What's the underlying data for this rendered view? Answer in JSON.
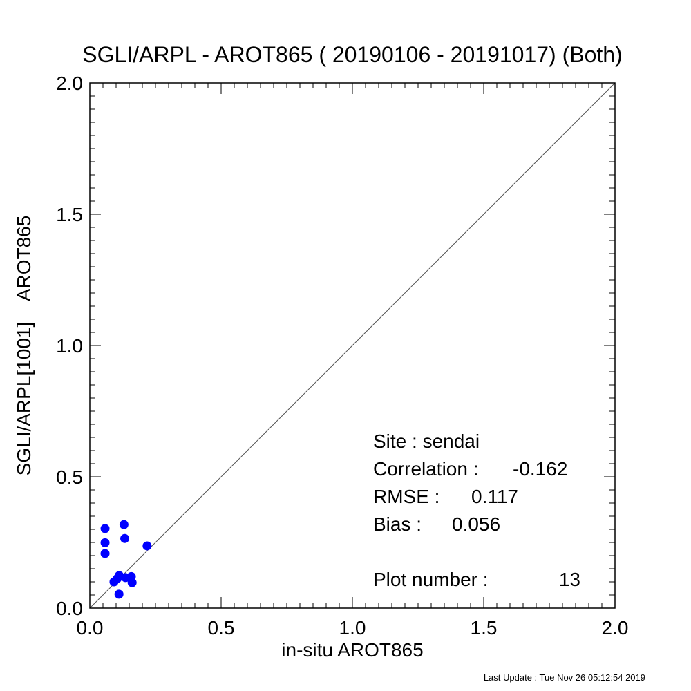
{
  "chart_data": {
    "type": "scatter",
    "title": "SGLI/ARPL - AROT865 ( 20190106 - 20191017) (Both)",
    "xlabel": "in-situ AROT865",
    "ylabel": "SGLI/ARPL[1001]    AROT865",
    "xlim": [
      0.0,
      2.0
    ],
    "ylim": [
      0.0,
      2.0
    ],
    "xticks": [
      "0.0",
      "0.5",
      "1.0",
      "1.5",
      "2.0"
    ],
    "yticks": [
      "0.0",
      "0.5",
      "1.0",
      "1.5",
      "2.0"
    ],
    "grid": false,
    "one_to_one_line": true,
    "point_color": "#0000ff",
    "line_color": "#555555",
    "points": [
      {
        "x": 0.058,
        "y": 0.303
      },
      {
        "x": 0.058,
        "y": 0.249
      },
      {
        "x": 0.058,
        "y": 0.208
      },
      {
        "x": 0.13,
        "y": 0.318
      },
      {
        "x": 0.133,
        "y": 0.265
      },
      {
        "x": 0.218,
        "y": 0.237
      },
      {
        "x": 0.092,
        "y": 0.1
      },
      {
        "x": 0.105,
        "y": 0.113
      },
      {
        "x": 0.112,
        "y": 0.124
      },
      {
        "x": 0.136,
        "y": 0.116
      },
      {
        "x": 0.158,
        "y": 0.12
      },
      {
        "x": 0.161,
        "y": 0.097
      },
      {
        "x": 0.111,
        "y": 0.053
      }
    ],
    "stats": {
      "site": "Site : sendai",
      "correlation_label": "Correlation :",
      "correlation": "-0.162",
      "rmse_label": "RMSE :",
      "rmse": "0.117",
      "bias_label": "Bias :",
      "bias": "0.056",
      "plot_number_label": "Plot number :",
      "plot_number": "13"
    }
  },
  "footer": "Last Update : Tue Nov 26 05:12:54 2019"
}
